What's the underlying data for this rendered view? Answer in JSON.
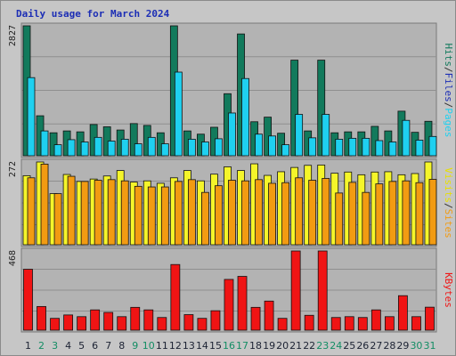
{
  "title": "Daily usage for March 2024",
  "colors": {
    "hits": "#127a5c",
    "pages": "#1fd0f0",
    "visits": "#f5f52a",
    "sites": "#f29b12",
    "kbytes": "#f01414",
    "weekday_label": "#1c2233",
    "weekend_label": "#138d64",
    "panel_bg": "#b3b3b3"
  },
  "axis_labels": {
    "panel1": [
      {
        "text": "Hits",
        "color": "#127a5c"
      },
      {
        "text": "/",
        "color": "#333333"
      },
      {
        "text": "Files",
        "color": "#1c2eb5"
      },
      {
        "text": "/",
        "color": "#333333"
      },
      {
        "text": "Pages",
        "color": "#1fd0f0"
      }
    ],
    "panel2": [
      {
        "text": "Visits",
        "color": "#e8e000"
      },
      {
        "text": "/",
        "color": "#333333"
      },
      {
        "text": "Sites",
        "color": "#f29b12"
      }
    ],
    "panel3": [
      {
        "text": "KBytes",
        "color": "#f01414"
      }
    ]
  },
  "chart_data": {
    "type": "bar",
    "title": "Daily usage for March 2024",
    "categories": [
      "1",
      "2",
      "3",
      "4",
      "5",
      "6",
      "7",
      "8",
      "9",
      "10",
      "11",
      "12",
      "13",
      "14",
      "15",
      "16",
      "17",
      "18",
      "19",
      "20",
      "21",
      "22",
      "23",
      "24",
      "25",
      "26",
      "27",
      "28",
      "29",
      "30",
      "31"
    ],
    "weekend_days": [
      2,
      3,
      9,
      10,
      16,
      17,
      23,
      24,
      30,
      31
    ],
    "panels": [
      {
        "id": "hits_pages",
        "max_label": "2827",
        "ylim": [
          0,
          2827
        ],
        "series": [
          {
            "name": "Hits",
            "values": [
              2827,
              870,
              500,
              540,
              520,
              680,
              630,
              560,
              700,
              660,
              500,
              2827,
              540,
              470,
              620,
              1350,
              2650,
              740,
              840,
              490,
              2080,
              540,
              2080,
              500,
              520,
              520,
              640,
              540,
              970,
              510,
              750
            ]
          },
          {
            "name": "Pages",
            "values": [
              1700,
              540,
              240,
              350,
              300,
              400,
              320,
              360,
              260,
              400,
              260,
              1820,
              360,
              300,
              370,
              930,
              1680,
              470,
              430,
              240,
              900,
              390,
              900,
              360,
              380,
              380,
              330,
              300,
              770,
              340,
              420
            ]
          }
        ]
      },
      {
        "id": "visits_sites",
        "max_label": "272",
        "ylim": [
          0,
          272
        ],
        "series": [
          {
            "name": "Visits",
            "values": [
              227,
              272,
              168,
              231,
              208,
              216,
              226,
              244,
              206,
              210,
              202,
              220,
              244,
              210,
              232,
              256,
              244,
              266,
              228,
              240,
              254,
              261,
              262,
              235,
              239,
              230,
              239,
              240,
              230,
              234,
              272
            ]
          },
          {
            "name": "Sites",
            "values": [
              220,
              265,
              168,
              225,
              208,
              212,
              214,
              210,
              192,
              190,
              190,
              208,
              214,
              172,
              194,
              212,
              210,
              214,
              202,
              204,
              220,
              212,
              218,
              170,
              205,
              172,
              200,
              208,
              210,
              204,
              215
            ]
          }
        ]
      },
      {
        "id": "kbytes",
        "max_label": "468",
        "ylim": [
          0,
          468
        ],
        "series": [
          {
            "name": "KBytes",
            "values": [
              360,
              140,
              70,
              90,
              80,
              120,
              105,
              80,
              135,
              120,
              75,
              388,
              92,
              70,
              115,
              300,
              318,
              135,
              172,
              70,
              468,
              88,
              468,
              75,
              80,
              75,
              120,
              80,
              204,
              80,
              136
            ]
          }
        ]
      }
    ]
  }
}
